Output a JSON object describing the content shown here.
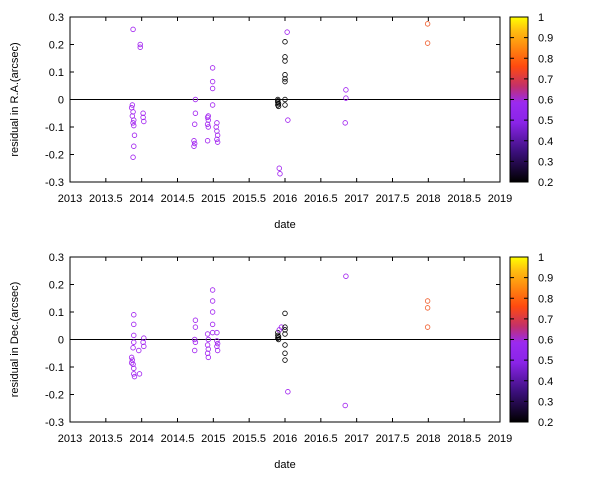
{
  "colorbar": {
    "ticks": [
      "1",
      "0.9",
      "0.8",
      "0.7",
      "0.6",
      "0.5",
      "0.4",
      "0.3",
      "0.2"
    ],
    "range": [
      0.2,
      1
    ],
    "colormap": "gnuplot (black-purple-red-orange-yellow)"
  },
  "colors": {
    "low": "#000000",
    "mid": "#a020f0",
    "high": "#ff6020",
    "top": "#ffff00"
  },
  "chart_data": [
    {
      "type": "scatter",
      "xlabel": "date",
      "ylabel": "residual in R.A.(arcsec)",
      "xlim": [
        2013,
        2019
      ],
      "ylim": [
        -0.3,
        0.3
      ],
      "xticks": [
        "2013",
        "2013.5",
        "2014",
        "2014.5",
        "2015",
        "2015.5",
        "2016",
        "2016.5",
        "2017",
        "2017.5",
        "2018",
        "2018.5",
        "2019"
      ],
      "yticks": [
        "0.3",
        "0.2",
        "0.1",
        "0",
        "-0.1",
        "-0.2",
        "-0.3"
      ],
      "zero_line": true,
      "colorbar_range": [
        0.2,
        1
      ],
      "points": [
        {
          "x": 2013.88,
          "y": 0.255,
          "c": 0.45
        },
        {
          "x": 2013.87,
          "y": -0.02,
          "c": 0.45
        },
        {
          "x": 2013.86,
          "y": -0.03,
          "c": 0.45
        },
        {
          "x": 2013.88,
          "y": -0.045,
          "c": 0.45
        },
        {
          "x": 2013.87,
          "y": -0.06,
          "c": 0.45
        },
        {
          "x": 2013.89,
          "y": -0.075,
          "c": 0.45
        },
        {
          "x": 2013.88,
          "y": -0.085,
          "c": 0.45
        },
        {
          "x": 2013.89,
          "y": -0.095,
          "c": 0.45
        },
        {
          "x": 2013.9,
          "y": -0.13,
          "c": 0.45
        },
        {
          "x": 2013.89,
          "y": -0.17,
          "c": 0.45
        },
        {
          "x": 2013.88,
          "y": -0.21,
          "c": 0.45
        },
        {
          "x": 2013.98,
          "y": 0.19,
          "c": 0.45
        },
        {
          "x": 2013.98,
          "y": 0.2,
          "c": 0.45
        },
        {
          "x": 2014.02,
          "y": -0.05,
          "c": 0.45
        },
        {
          "x": 2014.02,
          "y": -0.065,
          "c": 0.45
        },
        {
          "x": 2014.03,
          "y": -0.08,
          "c": 0.45
        },
        {
          "x": 2014.75,
          "y": 0.0,
          "c": 0.45
        },
        {
          "x": 2014.75,
          "y": -0.05,
          "c": 0.45
        },
        {
          "x": 2014.74,
          "y": -0.09,
          "c": 0.45
        },
        {
          "x": 2014.73,
          "y": -0.15,
          "c": 0.45
        },
        {
          "x": 2014.74,
          "y": -0.16,
          "c": 0.45
        },
        {
          "x": 2014.73,
          "y": -0.17,
          "c": 0.45
        },
        {
          "x": 2014.93,
          "y": -0.06,
          "c": 0.45
        },
        {
          "x": 2014.92,
          "y": -0.065,
          "c": 0.45
        },
        {
          "x": 2014.93,
          "y": -0.075,
          "c": 0.45
        },
        {
          "x": 2014.92,
          "y": -0.09,
          "c": 0.45
        },
        {
          "x": 2014.93,
          "y": -0.1,
          "c": 0.45
        },
        {
          "x": 2014.92,
          "y": -0.15,
          "c": 0.45
        },
        {
          "x": 2014.99,
          "y": 0.115,
          "c": 0.45
        },
        {
          "x": 2014.99,
          "y": 0.065,
          "c": 0.45
        },
        {
          "x": 2014.99,
          "y": 0.04,
          "c": 0.45
        },
        {
          "x": 2014.99,
          "y": -0.02,
          "c": 0.45
        },
        {
          "x": 2015.05,
          "y": -0.085,
          "c": 0.45
        },
        {
          "x": 2015.04,
          "y": -0.1,
          "c": 0.45
        },
        {
          "x": 2015.05,
          "y": -0.115,
          "c": 0.45
        },
        {
          "x": 2015.06,
          "y": -0.13,
          "c": 0.45
        },
        {
          "x": 2015.05,
          "y": -0.145,
          "c": 0.45
        },
        {
          "x": 2015.06,
          "y": -0.155,
          "c": 0.45
        },
        {
          "x": 2015.9,
          "y": 0.0,
          "c": 0.2
        },
        {
          "x": 2015.9,
          "y": -0.005,
          "c": 0.2
        },
        {
          "x": 2015.9,
          "y": -0.01,
          "c": 0.2
        },
        {
          "x": 2015.91,
          "y": -0.015,
          "c": 0.2
        },
        {
          "x": 2015.9,
          "y": -0.02,
          "c": 0.2
        },
        {
          "x": 2015.91,
          "y": -0.025,
          "c": 0.2
        },
        {
          "x": 2015.92,
          "y": -0.25,
          "c": 0.45
        },
        {
          "x": 2015.93,
          "y": -0.27,
          "c": 0.45
        },
        {
          "x": 2016.0,
          "y": 0.21,
          "c": 0.2
        },
        {
          "x": 2016.0,
          "y": 0.155,
          "c": 0.2
        },
        {
          "x": 2016.0,
          "y": 0.14,
          "c": 0.2
        },
        {
          "x": 2016.0,
          "y": 0.09,
          "c": 0.2
        },
        {
          "x": 2016.0,
          "y": 0.075,
          "c": 0.2
        },
        {
          "x": 2016.0,
          "y": 0.065,
          "c": 0.2
        },
        {
          "x": 2016.0,
          "y": 0.0,
          "c": 0.2
        },
        {
          "x": 2016.0,
          "y": -0.02,
          "c": 0.2
        },
        {
          "x": 2016.03,
          "y": 0.245,
          "c": 0.45
        },
        {
          "x": 2016.04,
          "y": -0.075,
          "c": 0.45
        },
        {
          "x": 2016.85,
          "y": 0.035,
          "c": 0.45
        },
        {
          "x": 2016.85,
          "y": 0.005,
          "c": 0.45
        },
        {
          "x": 2016.84,
          "y": -0.085,
          "c": 0.45
        },
        {
          "x": 2017.99,
          "y": 0.275,
          "c": 0.62
        },
        {
          "x": 2017.99,
          "y": 0.205,
          "c": 0.62
        }
      ]
    },
    {
      "type": "scatter",
      "xlabel": "date",
      "ylabel": "residual in Dec.(arcsec)",
      "xlim": [
        2013,
        2019
      ],
      "ylim": [
        -0.3,
        0.3
      ],
      "xticks": [
        "2013",
        "2013.5",
        "2014",
        "2014.5",
        "2015",
        "2015.5",
        "2016",
        "2016.5",
        "2017",
        "2017.5",
        "2018",
        "2018.5",
        "2019"
      ],
      "yticks": [
        "0.3",
        "0.2",
        "0.1",
        "0",
        "-0.1",
        "-0.2",
        "-0.3"
      ],
      "zero_line": true,
      "colorbar_range": [
        0.2,
        1
      ],
      "points": [
        {
          "x": 2013.89,
          "y": 0.09,
          "c": 0.45
        },
        {
          "x": 2013.89,
          "y": 0.055,
          "c": 0.45
        },
        {
          "x": 2013.89,
          "y": 0.015,
          "c": 0.45
        },
        {
          "x": 2013.89,
          "y": -0.01,
          "c": 0.45
        },
        {
          "x": 2013.88,
          "y": -0.03,
          "c": 0.45
        },
        {
          "x": 2013.86,
          "y": -0.065,
          "c": 0.45
        },
        {
          "x": 2013.87,
          "y": -0.075,
          "c": 0.45
        },
        {
          "x": 2013.86,
          "y": -0.085,
          "c": 0.45
        },
        {
          "x": 2013.88,
          "y": -0.09,
          "c": 0.45
        },
        {
          "x": 2013.89,
          "y": -0.105,
          "c": 0.45
        },
        {
          "x": 2013.89,
          "y": -0.125,
          "c": 0.45
        },
        {
          "x": 2013.9,
          "y": -0.135,
          "c": 0.45
        },
        {
          "x": 2013.96,
          "y": -0.04,
          "c": 0.45
        },
        {
          "x": 2013.97,
          "y": -0.125,
          "c": 0.45
        },
        {
          "x": 2014.03,
          "y": 0.005,
          "c": 0.45
        },
        {
          "x": 2014.02,
          "y": -0.01,
          "c": 0.45
        },
        {
          "x": 2014.03,
          "y": -0.025,
          "c": 0.45
        },
        {
          "x": 2014.75,
          "y": 0.07,
          "c": 0.45
        },
        {
          "x": 2014.75,
          "y": 0.045,
          "c": 0.45
        },
        {
          "x": 2014.74,
          "y": 0.0,
          "c": 0.45
        },
        {
          "x": 2014.75,
          "y": -0.01,
          "c": 0.45
        },
        {
          "x": 2014.74,
          "y": -0.04,
          "c": 0.45
        },
        {
          "x": 2014.92,
          "y": 0.02,
          "c": 0.45
        },
        {
          "x": 2014.93,
          "y": 0.0,
          "c": 0.45
        },
        {
          "x": 2014.92,
          "y": -0.02,
          "c": 0.45
        },
        {
          "x": 2014.93,
          "y": -0.035,
          "c": 0.45
        },
        {
          "x": 2014.92,
          "y": -0.05,
          "c": 0.45
        },
        {
          "x": 2014.93,
          "y": -0.065,
          "c": 0.45
        },
        {
          "x": 2014.99,
          "y": 0.18,
          "c": 0.45
        },
        {
          "x": 2014.99,
          "y": 0.14,
          "c": 0.45
        },
        {
          "x": 2014.99,
          "y": 0.1,
          "c": 0.45
        },
        {
          "x": 2014.99,
          "y": 0.055,
          "c": 0.45
        },
        {
          "x": 2014.99,
          "y": 0.025,
          "c": 0.45
        },
        {
          "x": 2015.05,
          "y": 0.025,
          "c": 0.45
        },
        {
          "x": 2015.05,
          "y": -0.005,
          "c": 0.45
        },
        {
          "x": 2015.06,
          "y": -0.015,
          "c": 0.45
        },
        {
          "x": 2015.05,
          "y": -0.025,
          "c": 0.45
        },
        {
          "x": 2015.06,
          "y": -0.04,
          "c": 0.45
        },
        {
          "x": 2015.9,
          "y": 0.025,
          "c": 0.2
        },
        {
          "x": 2015.9,
          "y": 0.015,
          "c": 0.2
        },
        {
          "x": 2015.91,
          "y": 0.01,
          "c": 0.2
        },
        {
          "x": 2015.9,
          "y": 0.005,
          "c": 0.2
        },
        {
          "x": 2015.91,
          "y": 0.0,
          "c": 0.2
        },
        {
          "x": 2015.92,
          "y": 0.035,
          "c": 0.45
        },
        {
          "x": 2015.95,
          "y": 0.045,
          "c": 0.45
        },
        {
          "x": 2016.0,
          "y": 0.095,
          "c": 0.2
        },
        {
          "x": 2016.0,
          "y": 0.045,
          "c": 0.2
        },
        {
          "x": 2016.0,
          "y": 0.035,
          "c": 0.2
        },
        {
          "x": 2016.0,
          "y": 0.02,
          "c": 0.2
        },
        {
          "x": 2016.0,
          "y": -0.02,
          "c": 0.2
        },
        {
          "x": 2016.0,
          "y": -0.05,
          "c": 0.2
        },
        {
          "x": 2016.0,
          "y": -0.075,
          "c": 0.2
        },
        {
          "x": 2016.04,
          "y": -0.19,
          "c": 0.45
        },
        {
          "x": 2016.85,
          "y": 0.23,
          "c": 0.45
        },
        {
          "x": 2016.84,
          "y": -0.24,
          "c": 0.45
        },
        {
          "x": 2017.99,
          "y": 0.14,
          "c": 0.62
        },
        {
          "x": 2017.99,
          "y": 0.115,
          "c": 0.62
        },
        {
          "x": 2017.99,
          "y": 0.045,
          "c": 0.62
        }
      ]
    }
  ]
}
